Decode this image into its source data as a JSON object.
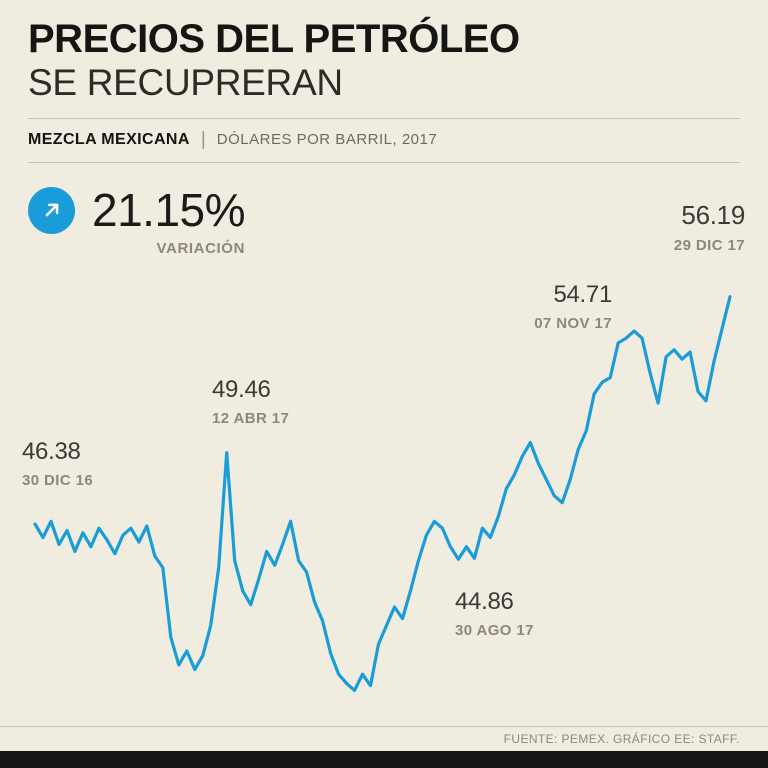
{
  "header": {
    "title_line1": "PRECIOS DEL PETRÓLEO",
    "title_line2": "SE RECUPRERAN",
    "series_label": "MEZCLA MEXICANA",
    "separator": "|",
    "units_label": "DÓLARES POR BARRIL, 2017"
  },
  "stat": {
    "variation_value": "21.15%",
    "variation_label": "VARIACIÓN",
    "variation_pct": 21.15,
    "arrow_icon": "arrow-up-right-icon",
    "accent_color": "#199cd8"
  },
  "chart_data": {
    "type": "line",
    "title": "Mezcla Mexicana, dólares por barril, 2017",
    "xlabel": "",
    "ylabel": "Dólares por barril",
    "ylim": [
      39,
      57
    ],
    "grid": false,
    "legend": false,
    "line_color": "#199cd8",
    "x_range": [
      "30 DIC 16",
      "29 DIC 17"
    ],
    "values": [
      46.38,
      45.8,
      46.5,
      45.5,
      46.1,
      45.2,
      46.0,
      45.4,
      46.2,
      45.7,
      45.1,
      45.9,
      46.2,
      45.6,
      46.3,
      45.0,
      44.5,
      41.5,
      40.3,
      40.9,
      40.1,
      40.7,
      42.0,
      44.5,
      49.46,
      44.8,
      43.5,
      42.9,
      44.0,
      45.2,
      44.6,
      45.5,
      46.5,
      44.8,
      44.3,
      43.0,
      42.2,
      40.8,
      39.9,
      39.5,
      39.2,
      39.9,
      39.4,
      41.2,
      42.0,
      42.8,
      42.3,
      43.5,
      44.8,
      45.9,
      46.5,
      46.2,
      45.4,
      44.86,
      45.4,
      44.9,
      46.2,
      45.8,
      46.7,
      47.9,
      48.5,
      49.3,
      49.9,
      49.0,
      48.3,
      47.6,
      47.3,
      48.3,
      49.6,
      50.4,
      52.0,
      52.5,
      52.7,
      54.2,
      54.4,
      54.71,
      54.4,
      52.9,
      51.6,
      53.6,
      53.9,
      53.5,
      53.8,
      52.1,
      51.7,
      53.4,
      54.8,
      56.19
    ],
    "annotations": [
      {
        "value": "46.38",
        "date": "30 DIC 16",
        "index": 0
      },
      {
        "value": "49.46",
        "date": "12 ABR 17",
        "index": 24
      },
      {
        "value": "44.86",
        "date": "30 AGO 17",
        "index": 53
      },
      {
        "value": "54.71",
        "date": "07 NOV 17",
        "index": 75
      },
      {
        "value": "56.19",
        "date": "29 DIC 17",
        "index": 87
      }
    ]
  },
  "footer": {
    "source": "FUENTE: PEMEX. GRÁFICO EE: STAFF."
  }
}
